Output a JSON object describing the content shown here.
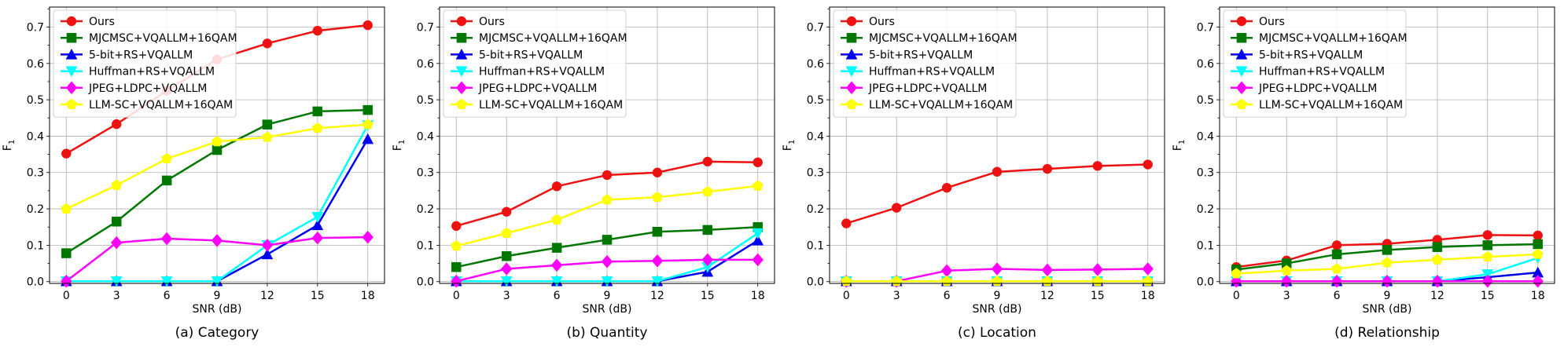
{
  "chart_data": [
    {
      "type": "line",
      "caption": "(a) Category",
      "xlabel": "SNR (dB)",
      "ylabel_base": "F",
      "ylabel_sub": "1",
      "x": [
        0,
        3,
        6,
        9,
        12,
        15,
        18
      ],
      "xlim": [
        -1,
        19
      ],
      "ylim": [
        -0.005,
        0.755
      ],
      "yticks": [
        "0.0",
        "0.1",
        "0.2",
        "0.3",
        "0.4",
        "0.5",
        "0.6",
        "0.7"
      ],
      "grid": true,
      "legend": "top-left",
      "series": [
        {
          "name": "Ours",
          "color": "#ee1111",
          "marker": "circle",
          "values": [
            0.352,
            0.433,
            0.525,
            0.611,
            0.655,
            0.69,
            0.705
          ]
        },
        {
          "name": "MJCMSC+VQALLM+16QAM",
          "color": "#007700",
          "marker": "square",
          "values": [
            0.078,
            0.165,
            0.278,
            0.362,
            0.432,
            0.468,
            0.472
          ]
        },
        {
          "name": "5-bit+RS+VQALLM",
          "color": "#0000ee",
          "marker": "triangle-up",
          "values": [
            0.001,
            0.001,
            0.001,
            0.001,
            0.075,
            0.155,
            0.392
          ]
        },
        {
          "name": "Huffman+RS+VQALLM",
          "color": "#00ffff",
          "marker": "triangle-down",
          "values": [
            0.001,
            0.001,
            0.001,
            0.001,
            0.1,
            0.178,
            0.43
          ]
        },
        {
          "name": "JPEG+LDPC+VQALLM",
          "color": "#ff00ff",
          "marker": "diamond",
          "values": [
            0.001,
            0.107,
            0.118,
            0.113,
            0.1,
            0.12,
            0.122
          ]
        },
        {
          "name": "LLM-SC+VQALLM+16QAM",
          "color": "#ffff00",
          "marker": "pentagon",
          "values": [
            0.2,
            0.265,
            0.338,
            0.385,
            0.397,
            0.422,
            0.432
          ]
        }
      ]
    },
    {
      "type": "line",
      "caption": "(b) Quantity",
      "xlabel": "SNR (dB)",
      "ylabel_base": "F",
      "ylabel_sub": "1",
      "x": [
        0,
        3,
        6,
        9,
        12,
        15,
        18
      ],
      "xlim": [
        -1,
        19
      ],
      "ylim": [
        -0.005,
        0.755
      ],
      "yticks": [
        "0.0",
        "0.1",
        "0.2",
        "0.3",
        "0.4",
        "0.5",
        "0.6",
        "0.7"
      ],
      "grid": true,
      "legend": "top-left",
      "series": [
        {
          "name": "Ours",
          "color": "#ee1111",
          "marker": "circle",
          "values": [
            0.153,
            0.192,
            0.262,
            0.293,
            0.3,
            0.33,
            0.328
          ]
        },
        {
          "name": "MJCMSC+VQALLM+16QAM",
          "color": "#007700",
          "marker": "square",
          "values": [
            0.04,
            0.07,
            0.093,
            0.115,
            0.137,
            0.142,
            0.15
          ]
        },
        {
          "name": "5-bit+RS+VQALLM",
          "color": "#0000ee",
          "marker": "triangle-up",
          "values": [
            0.001,
            0.001,
            0.001,
            0.001,
            0.001,
            0.027,
            0.113
          ]
        },
        {
          "name": "Huffman+RS+VQALLM",
          "color": "#00ffff",
          "marker": "triangle-down",
          "values": [
            0.001,
            0.001,
            0.001,
            0.001,
            0.001,
            0.04,
            0.133
          ]
        },
        {
          "name": "JPEG+LDPC+VQALLM",
          "color": "#ff00ff",
          "marker": "diamond",
          "values": [
            0.001,
            0.035,
            0.045,
            0.055,
            0.057,
            0.06,
            0.06
          ]
        },
        {
          "name": "LLM-SC+VQALLM+16QAM",
          "color": "#ffff00",
          "marker": "pentagon",
          "values": [
            0.098,
            0.133,
            0.17,
            0.225,
            0.232,
            0.247,
            0.263
          ]
        }
      ]
    },
    {
      "type": "line",
      "caption": "(c) Location",
      "xlabel": "SNR (dB)",
      "ylabel_base": "F",
      "ylabel_sub": "1",
      "x": [
        0,
        3,
        6,
        9,
        12,
        15,
        18
      ],
      "xlim": [
        -1,
        19
      ],
      "ylim": [
        -0.005,
        0.755
      ],
      "yticks": [
        "0.0",
        "0.1",
        "0.2",
        "0.3",
        "0.4",
        "0.5",
        "0.6",
        "0.7"
      ],
      "grid": true,
      "legend": "top-left",
      "series": [
        {
          "name": "Ours",
          "color": "#ee1111",
          "marker": "circle",
          "values": [
            0.16,
            0.203,
            0.258,
            0.302,
            0.31,
            0.318,
            0.322
          ]
        },
        {
          "name": "MJCMSC+VQALLM+16QAM",
          "color": "#007700",
          "marker": "square",
          "values": [
            0.001,
            0.001,
            0.001,
            0.001,
            0.001,
            0.001,
            0.001
          ]
        },
        {
          "name": "5-bit+RS+VQALLM",
          "color": "#0000ee",
          "marker": "triangle-up",
          "values": [
            0.001,
            0.001,
            0.001,
            0.001,
            0.001,
            0.001,
            0.001
          ]
        },
        {
          "name": "Huffman+RS+VQALLM",
          "color": "#00ffff",
          "marker": "triangle-down",
          "values": [
            0.001,
            0.001,
            0.001,
            0.001,
            0.001,
            0.001,
            0.001
          ]
        },
        {
          "name": "JPEG+LDPC+VQALLM",
          "color": "#ff00ff",
          "marker": "diamond",
          "values": [
            0.001,
            0.001,
            0.03,
            0.035,
            0.032,
            0.033,
            0.035
          ]
        },
        {
          "name": "LLM-SC+VQALLM+16QAM",
          "color": "#ffff00",
          "marker": "pentagon",
          "values": [
            0.001,
            0.001,
            0.001,
            0.001,
            0.001,
            0.001,
            0.001
          ]
        }
      ]
    },
    {
      "type": "line",
      "caption": "(d) Relationship",
      "xlabel": "SNR (dB)",
      "ylabel_base": "F",
      "ylabel_sub": "1",
      "x": [
        0,
        3,
        6,
        9,
        12,
        15,
        18
      ],
      "xlim": [
        -1,
        19
      ],
      "ylim": [
        -0.005,
        0.755
      ],
      "yticks": [
        "0.0",
        "0.1",
        "0.2",
        "0.3",
        "0.4",
        "0.5",
        "0.6",
        "0.7"
      ],
      "grid": true,
      "legend": "top-left",
      "series": [
        {
          "name": "Ours",
          "color": "#ee1111",
          "marker": "circle",
          "values": [
            0.04,
            0.058,
            0.1,
            0.104,
            0.115,
            0.128,
            0.127
          ]
        },
        {
          "name": "MJCMSC+VQALLM+16QAM",
          "color": "#007700",
          "marker": "square",
          "values": [
            0.033,
            0.05,
            0.075,
            0.087,
            0.095,
            0.1,
            0.103
          ]
        },
        {
          "name": "5-bit+RS+VQALLM",
          "color": "#0000ee",
          "marker": "triangle-up",
          "values": [
            0.001,
            0.001,
            0.001,
            0.001,
            0.001,
            0.012,
            0.025
          ]
        },
        {
          "name": "Huffman+RS+VQALLM",
          "color": "#00ffff",
          "marker": "triangle-down",
          "values": [
            0.001,
            0.001,
            0.001,
            0.001,
            0.001,
            0.02,
            0.065
          ]
        },
        {
          "name": "JPEG+LDPC+VQALLM",
          "color": "#ff00ff",
          "marker": "diamond",
          "values": [
            0.001,
            0.001,
            0.001,
            0.001,
            0.001,
            0.001,
            0.001
          ]
        },
        {
          "name": "LLM-SC+VQALLM+16QAM",
          "color": "#ffff00",
          "marker": "pentagon",
          "values": [
            0.022,
            0.03,
            0.035,
            0.052,
            0.06,
            0.068,
            0.075
          ]
        }
      ]
    }
  ]
}
